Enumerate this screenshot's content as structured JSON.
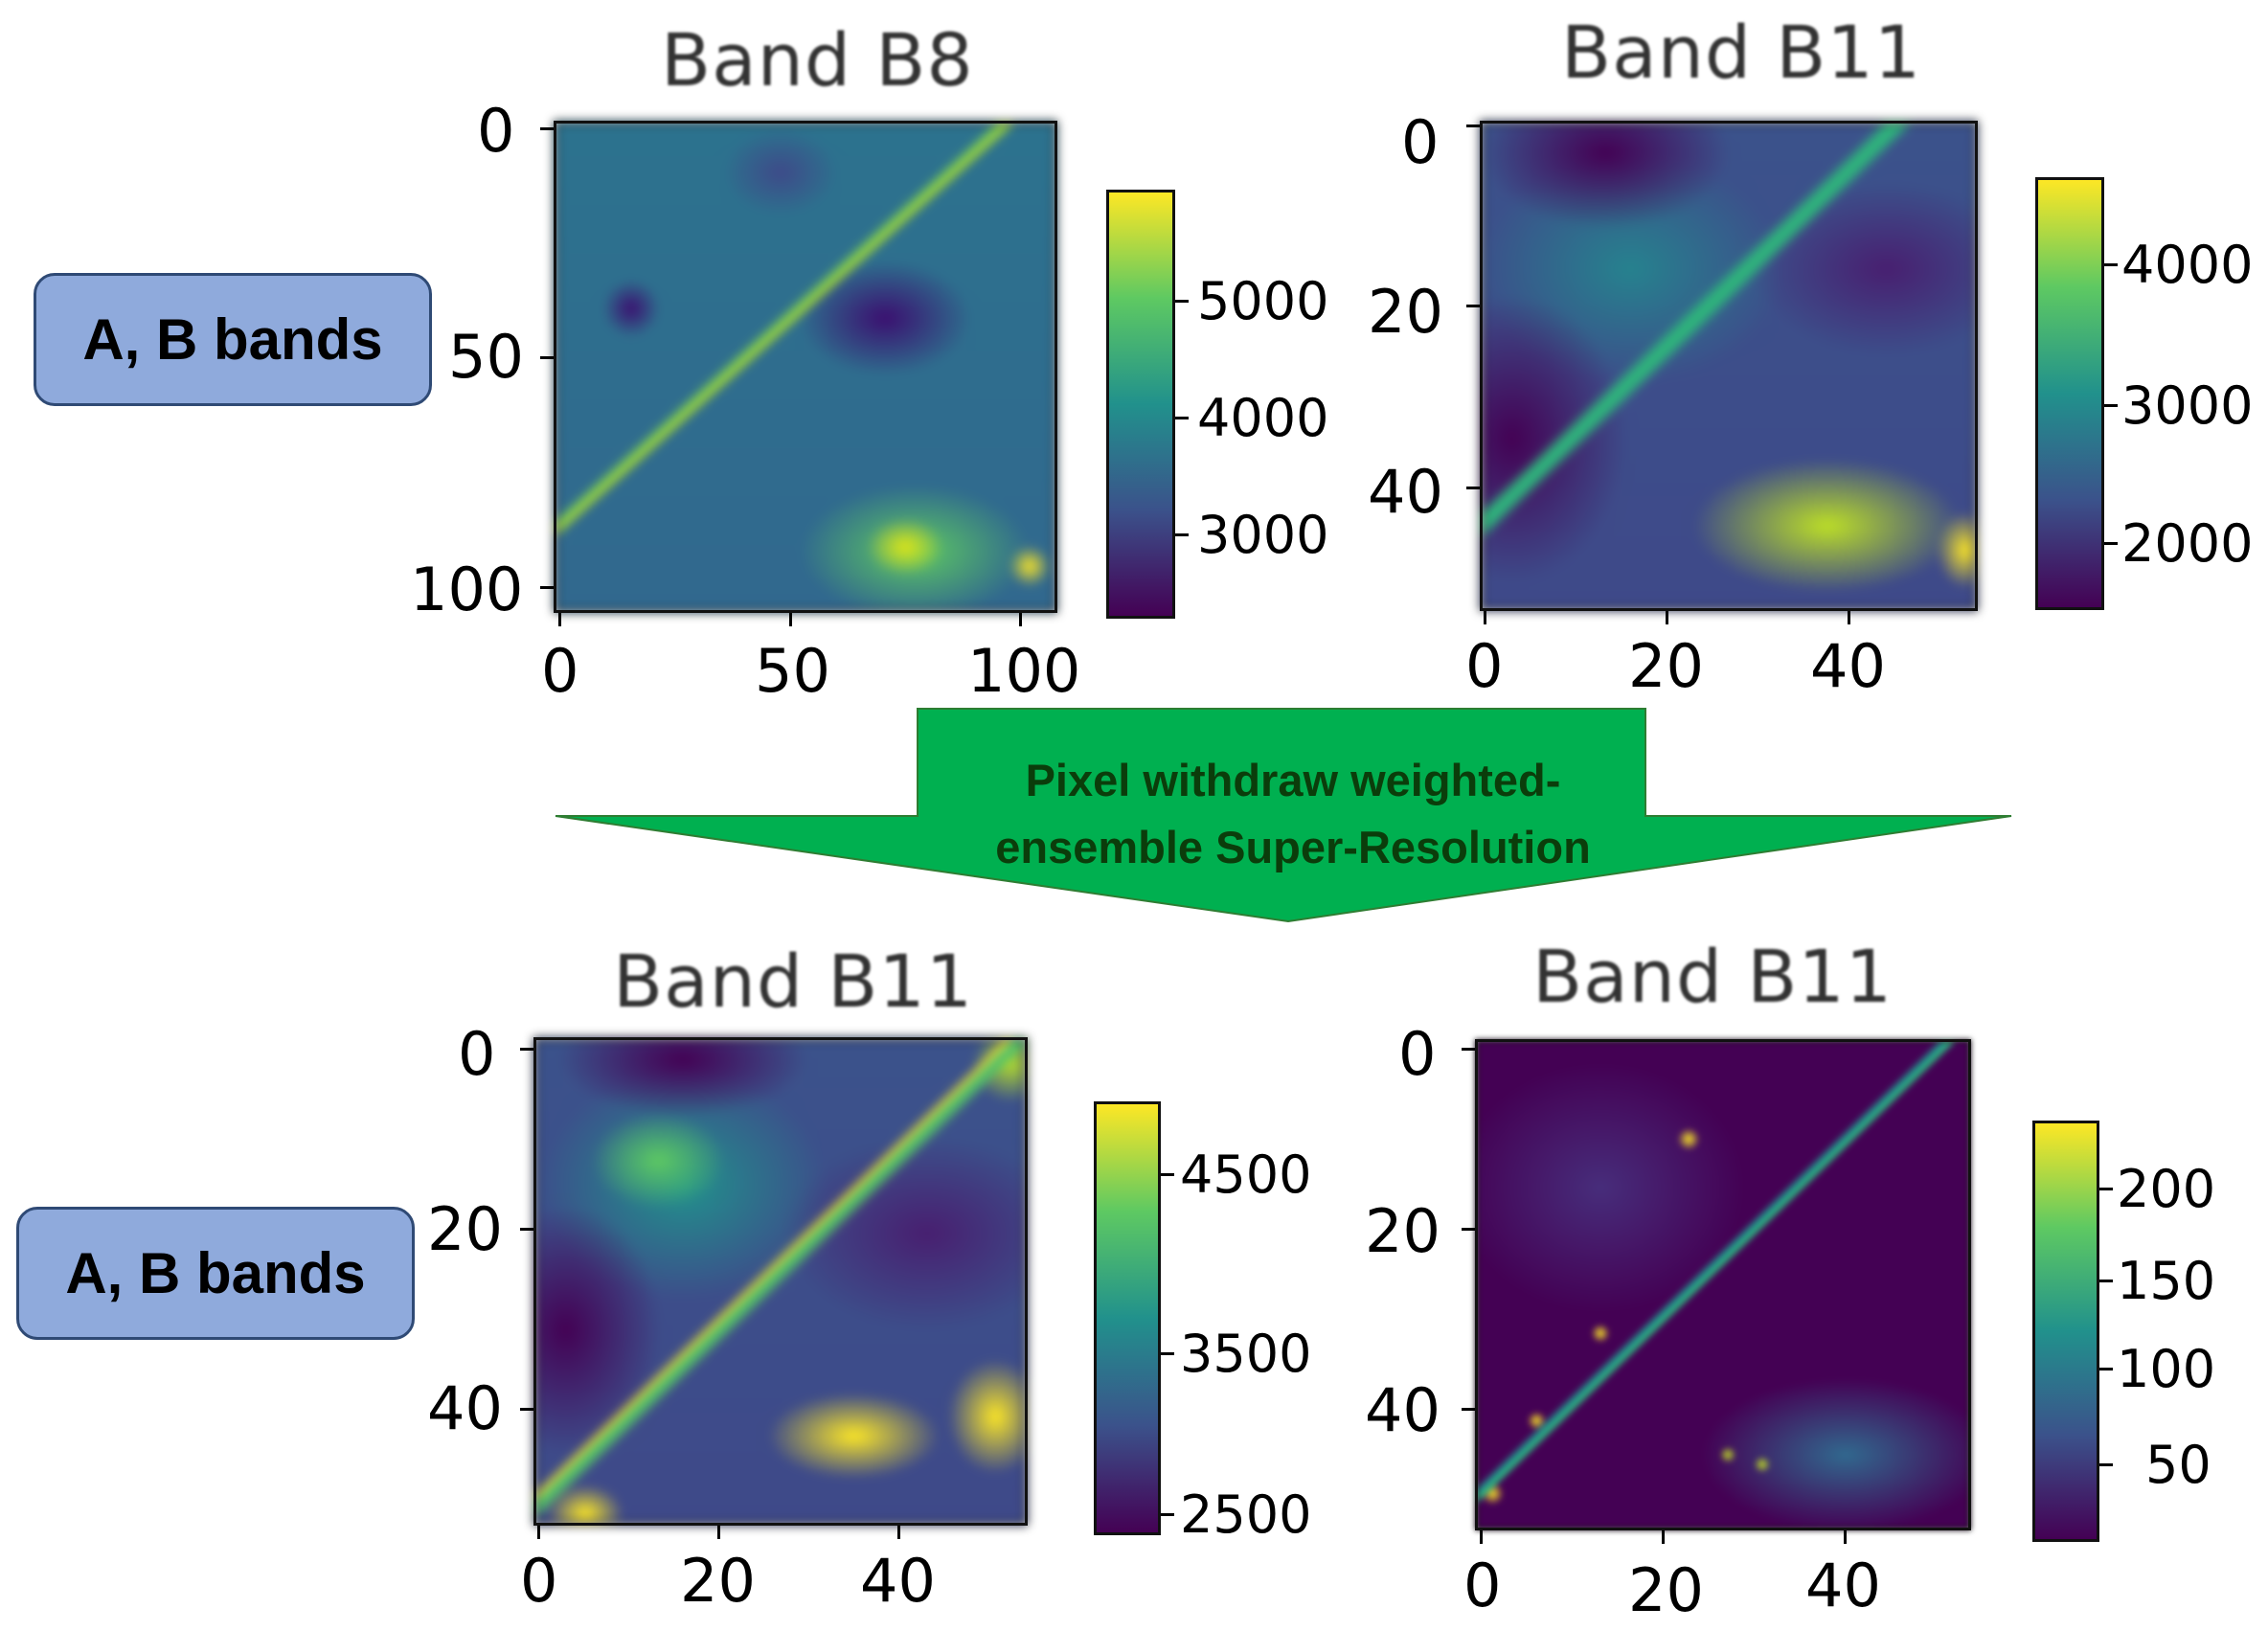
{
  "labels": {
    "top": "A, B bands",
    "bottom": "A, B bands"
  },
  "arrow": {
    "line1": "Pixel withdraw weighted-",
    "line2": "ensemble Super-Resolution",
    "color": "#00b050"
  },
  "panels": [
    {
      "title": "Band B8",
      "yticks": [
        "0",
        "50",
        "100"
      ],
      "xticks": [
        "0",
        "50",
        "100"
      ],
      "colorbar_ticks": [
        "5000",
        "4000",
        "3000"
      ],
      "colormap": "viridis"
    },
    {
      "title": "Band B11",
      "yticks": [
        "0",
        "20",
        "40"
      ],
      "xticks": [
        "0",
        "20",
        "40"
      ],
      "colorbar_ticks": [
        "4000",
        "3000",
        "2000"
      ],
      "colormap": "viridis"
    },
    {
      "title": "Band B11",
      "yticks": [
        "0",
        "20",
        "40"
      ],
      "xticks": [
        "0",
        "20",
        "40"
      ],
      "colorbar_ticks": [
        "4500",
        "3500",
        "2500"
      ],
      "colormap": "viridis"
    },
    {
      "title": "Band B11",
      "yticks": [
        "0",
        "20",
        "40"
      ],
      "xticks": [
        "0",
        "20",
        "40"
      ],
      "colorbar_ticks": [
        "200",
        "150",
        "100",
        "50"
      ],
      "colormap": "viridis"
    }
  ]
}
